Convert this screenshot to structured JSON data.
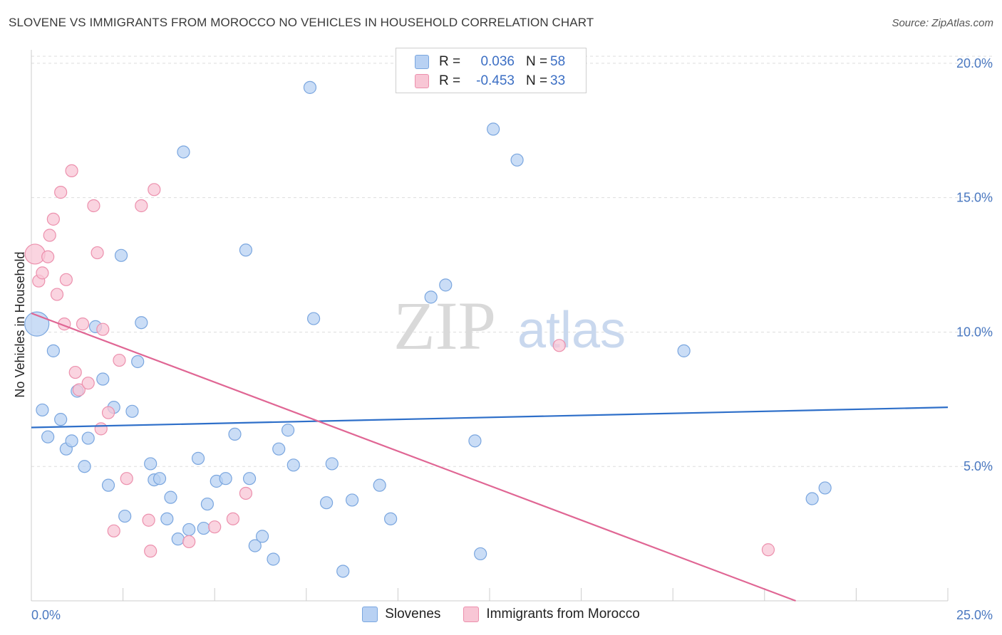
{
  "title": "SLOVENE VS IMMIGRANTS FROM MOROCCO NO VEHICLES IN HOUSEHOLD CORRELATION CHART",
  "source": "Source: ZipAtlas.com",
  "watermark": {
    "zip": "ZIP",
    "atlas": "atlas"
  },
  "legend": {
    "rows": [
      {
        "r_label": "R =",
        "r_value": "0.036",
        "n_label": "N =",
        "n_value": "58"
      },
      {
        "r_label": "R =",
        "r_value": "-0.453",
        "n_label": "N =",
        "n_value": "33"
      }
    ]
  },
  "bottom_legend": {
    "series1": "Slovenes",
    "series2": "Immigrants from Morocco"
  },
  "colors": {
    "slovene_fill": "#b8d1f3",
    "slovene_stroke": "#7aa6df",
    "slovene_line": "#2e6fc9",
    "morocco_fill": "#f8c6d5",
    "morocco_stroke": "#ec90ad",
    "morocco_line": "#e06694",
    "grid": "#dddddd",
    "tick_text": "#4a78c0"
  },
  "chart_data": {
    "type": "scatter",
    "title": "SLOVENE VS IMMIGRANTS FROM MOROCCO NO VEHICLES IN HOUSEHOLD CORRELATION CHART",
    "xlabel": "",
    "ylabel": "No Vehicles in Household",
    "xlim": [
      0,
      25
    ],
    "ylim": [
      0,
      20.5
    ],
    "x_tick_labels": [
      "0.0%",
      "25.0%"
    ],
    "y_ticks": [
      5,
      10,
      15,
      20
    ],
    "y_tick_labels": [
      "5.0%",
      "10.0%",
      "15.0%",
      "20.0%"
    ],
    "grid": true,
    "series": [
      {
        "name": "Slovenes",
        "r": 0.036,
        "n": 58,
        "trend": {
          "x": [
            0,
            25
          ],
          "y": [
            6.45,
            7.2
          ]
        },
        "points": [
          [
            0.15,
            10.3
          ],
          [
            0.3,
            7.1
          ],
          [
            0.45,
            6.1
          ],
          [
            0.6,
            9.3
          ],
          [
            0.8,
            6.75
          ],
          [
            0.95,
            5.65
          ],
          [
            1.1,
            5.95
          ],
          [
            1.25,
            7.8
          ],
          [
            1.45,
            5.0
          ],
          [
            1.55,
            6.05
          ],
          [
            1.75,
            10.2
          ],
          [
            1.95,
            8.25
          ],
          [
            2.1,
            4.3
          ],
          [
            2.25,
            7.2
          ],
          [
            2.45,
            12.85
          ],
          [
            2.55,
            3.15
          ],
          [
            2.75,
            7.05
          ],
          [
            2.9,
            8.9
          ],
          [
            3.0,
            10.35
          ],
          [
            3.25,
            5.1
          ],
          [
            3.35,
            4.5
          ],
          [
            3.5,
            4.55
          ],
          [
            3.7,
            3.05
          ],
          [
            3.8,
            3.85
          ],
          [
            4.0,
            2.3
          ],
          [
            4.15,
            16.7
          ],
          [
            4.3,
            2.65
          ],
          [
            4.55,
            5.3
          ],
          [
            4.7,
            2.7
          ],
          [
            4.8,
            3.6
          ],
          [
            5.05,
            4.45
          ],
          [
            5.3,
            4.55
          ],
          [
            5.55,
            6.2
          ],
          [
            5.85,
            13.05
          ],
          [
            5.95,
            4.55
          ],
          [
            6.1,
            2.05
          ],
          [
            6.3,
            2.4
          ],
          [
            6.6,
            1.55
          ],
          [
            6.75,
            5.65
          ],
          [
            7.0,
            6.35
          ],
          [
            7.15,
            5.05
          ],
          [
            7.6,
            19.1
          ],
          [
            7.7,
            10.5
          ],
          [
            8.05,
            3.65
          ],
          [
            8.2,
            5.1
          ],
          [
            8.5,
            1.1
          ],
          [
            8.75,
            3.75
          ],
          [
            9.5,
            4.3
          ],
          [
            9.8,
            3.05
          ],
          [
            10.9,
            11.3
          ],
          [
            11.3,
            11.75
          ],
          [
            12.1,
            5.95
          ],
          [
            12.25,
            1.75
          ],
          [
            12.6,
            17.55
          ],
          [
            13.25,
            16.4
          ],
          [
            17.8,
            9.3
          ],
          [
            21.3,
            3.8
          ],
          [
            21.65,
            4.2
          ]
        ]
      },
      {
        "name": "Immigrants from Morocco",
        "r": -0.453,
        "n": 33,
        "trend": {
          "x": [
            0,
            20.85
          ],
          "y": [
            10.7,
            0.0
          ]
        },
        "points": [
          [
            0.1,
            12.9
          ],
          [
            0.2,
            11.9
          ],
          [
            0.3,
            12.2
          ],
          [
            0.45,
            12.8
          ],
          [
            0.5,
            13.6
          ],
          [
            0.6,
            14.2
          ],
          [
            0.7,
            11.4
          ],
          [
            0.8,
            15.2
          ],
          [
            0.9,
            10.3
          ],
          [
            0.95,
            11.95
          ],
          [
            1.1,
            16.0
          ],
          [
            1.2,
            8.5
          ],
          [
            1.3,
            7.85
          ],
          [
            1.4,
            10.3
          ],
          [
            1.55,
            8.1
          ],
          [
            1.7,
            14.7
          ],
          [
            1.8,
            12.95
          ],
          [
            1.9,
            6.4
          ],
          [
            1.95,
            10.1
          ],
          [
            2.1,
            7.0
          ],
          [
            2.25,
            2.6
          ],
          [
            2.4,
            8.95
          ],
          [
            2.6,
            4.55
          ],
          [
            3.0,
            14.7
          ],
          [
            3.2,
            3.0
          ],
          [
            3.25,
            1.85
          ],
          [
            3.35,
            15.3
          ],
          [
            4.3,
            2.2
          ],
          [
            5.0,
            2.75
          ],
          [
            5.5,
            3.05
          ],
          [
            5.85,
            4.0
          ],
          [
            14.4,
            9.5
          ],
          [
            20.1,
            1.9
          ]
        ]
      }
    ]
  }
}
